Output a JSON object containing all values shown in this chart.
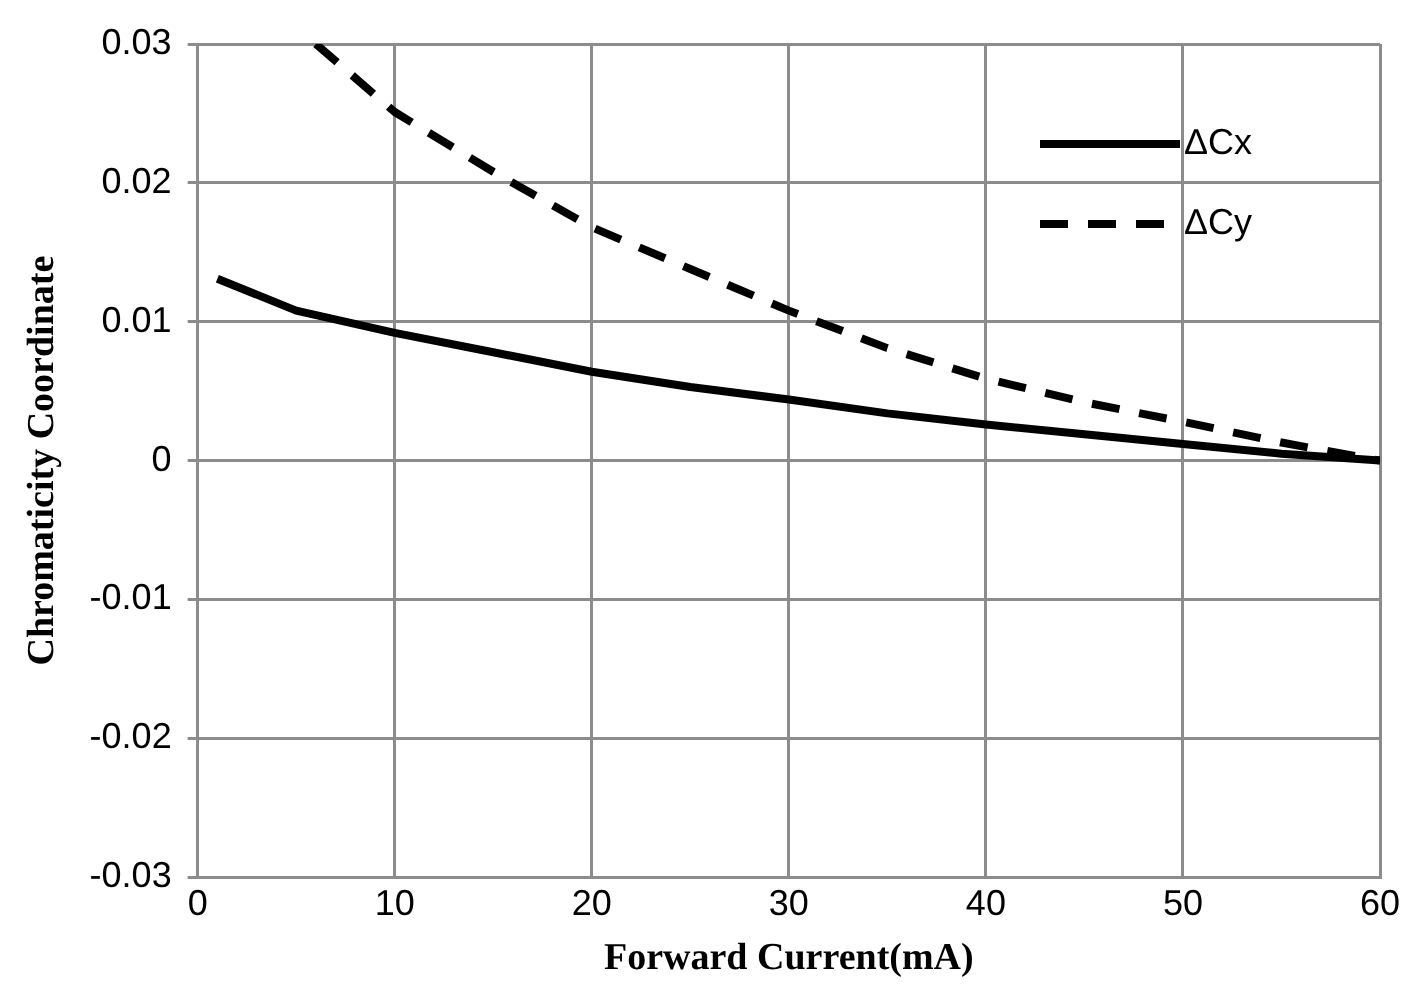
{
  "chart_data": {
    "type": "line",
    "xlabel": "Forward Current(mA)",
    "ylabel": "Chromaticity Coordinate",
    "xlim": [
      0,
      60
    ],
    "xticks": [
      0,
      10,
      20,
      30,
      40,
      50,
      60
    ],
    "ylim": [
      -0.03,
      0.03
    ],
    "yticks": [
      -0.03,
      -0.02,
      -0.01,
      0,
      0.01,
      0.02,
      0.03
    ],
    "grid": true,
    "legend": "top right",
    "marker": "none",
    "series": [
      {
        "name": "ΔCx",
        "color": "#000000",
        "line_style": "solid",
        "x": [
          1,
          5,
          10,
          15,
          20,
          25,
          30,
          35,
          40,
          45,
          50,
          55,
          60
        ],
        "values": [
          0.0131,
          0.0108,
          0.0092,
          0.0078,
          0.0064,
          0.0053,
          0.0044,
          0.0034,
          0.0026,
          0.0019,
          0.0012,
          0.0005,
          0
        ]
      },
      {
        "name": "ΔCy",
        "color": "#000000",
        "line_style": "dashed",
        "x": [
          6,
          10,
          15,
          20,
          25,
          30,
          35,
          40,
          45,
          50,
          55,
          60
        ],
        "values": [
          0.03,
          0.0251,
          0.0208,
          0.0168,
          0.0138,
          0.0108,
          0.0081,
          0.0059,
          0.0042,
          0.0028,
          0.0013,
          0
        ]
      }
    ]
  }
}
